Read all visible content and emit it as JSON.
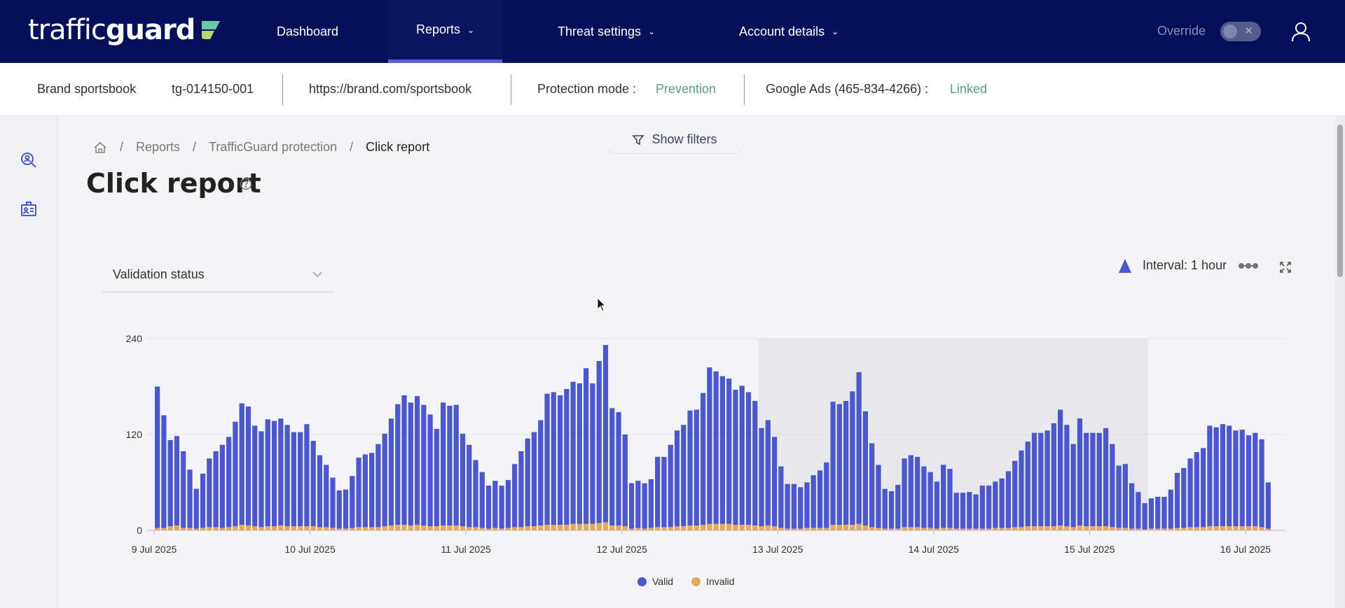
{
  "nav": {
    "logo_prefix": "traffic",
    "logo_bold": "guard",
    "items": [
      {
        "label": "Dashboard",
        "has_chevron": false
      },
      {
        "label": "Reports",
        "has_chevron": true,
        "active": true
      },
      {
        "label": "Threat settings",
        "has_chevron": true
      },
      {
        "label": "Account details",
        "has_chevron": true
      }
    ],
    "override_label": "Override",
    "override_toggle": "off"
  },
  "info": {
    "brand": "Brand sportsbook",
    "account_id": "tg-014150-001",
    "url": "https://brand.com/sportsbook",
    "protection_label": "Protection mode :",
    "protection_value": "Prevention",
    "google_ads_label": "Google Ads (465-834-4266) :",
    "google_ads_value": "Linked"
  },
  "filters": {
    "label": "Show filters"
  },
  "breadcrumb": {
    "reports": "Reports",
    "protection": "TrafficGuard protection",
    "current": "Click report",
    "separator": "/"
  },
  "page": {
    "title": "Click report"
  },
  "controls": {
    "group_by": "Validation status",
    "interval": "Interval: 1 hour"
  },
  "colors": {
    "valid": "#4c57c9",
    "invalid": "#e1a95f",
    "nav_bg": "#05105a",
    "accent": "#5aa07a"
  },
  "chart_data": {
    "type": "bar",
    "stacked": true,
    "ylim": [
      0,
      240
    ],
    "yticks": [
      0,
      120,
      240
    ],
    "xlabels": [
      "9 Jul 2025",
      "10 Jul 2025",
      "11 Jul 2025",
      "12 Jul 2025",
      "13 Jul 2025",
      "14 Jul 2025",
      "15 Jul 2025",
      "16 Jul 2025"
    ],
    "highlight_bars": [
      93,
      153
    ],
    "series": [
      {
        "name": "Valid",
        "values": [
          177,
          141,
          108,
          112,
          96,
          73,
          50,
          68,
          86,
          95,
          104,
          113,
          131,
          152,
          149,
          126,
          120,
          134,
          132,
          134,
          127,
          118,
          118,
          128,
          107,
          90,
          78,
          63,
          48,
          49,
          65,
          87,
          91,
          93,
          104,
          116,
          134,
          151,
          162,
          154,
          161,
          151,
          140,
          122,
          154,
          150,
          151,
          116,
          103,
          84,
          70,
          54,
          59,
          54,
          60,
          79,
          95,
          110,
          118,
          132,
          164,
          166,
          162,
          170,
          178,
          176,
          195,
          176,
          203,
          222,
          147,
          142,
          115,
          57,
          59,
          57,
          61,
          88,
          88,
          103,
          120,
          127,
          144,
          145,
          165,
          196,
          191,
          185,
          182,
          169,
          174,
          166,
          156,
          123,
          132,
          112,
          77,
          56,
          56,
          52,
          57,
          66,
          72,
          82,
          154,
          151,
          155,
          167,
          190,
          143,
          105,
          79,
          50,
          47,
          55,
          86,
          90,
          88,
          77,
          70,
          59,
          79,
          74,
          45,
          45,
          46,
          43,
          54,
          54,
          58,
          62,
          71,
          83,
          96,
          106,
          117,
          117,
          120,
          129,
          145,
          127,
          104,
          134,
          117,
          117,
          117,
          123,
          104,
          78,
          80,
          57,
          46,
          33,
          38,
          40,
          40,
          49,
          69,
          75,
          86,
          94,
          99,
          126,
          124,
          128,
          126,
          120,
          121,
          114,
          117,
          110,
          58
        ]
      },
      {
        "name": "Invalid",
        "values": [
          3,
          3,
          5,
          6,
          3,
          3,
          2,
          3,
          4,
          4,
          3,
          4,
          5,
          7,
          6,
          5,
          4,
          5,
          5,
          6,
          5,
          5,
          5,
          5,
          5,
          4,
          4,
          3,
          2,
          2,
          3,
          4,
          4,
          4,
          4,
          5,
          6,
          7,
          7,
          6,
          7,
          6,
          5,
          5,
          6,
          6,
          6,
          5,
          4,
          4,
          3,
          2,
          3,
          2,
          3,
          4,
          4,
          5,
          5,
          6,
          7,
          7,
          7,
          7,
          8,
          8,
          8,
          8,
          9,
          10,
          6,
          6,
          5,
          2,
          3,
          2,
          3,
          4,
          4,
          4,
          5,
          5,
          6,
          6,
          7,
          8,
          8,
          8,
          8,
          7,
          7,
          7,
          6,
          5,
          6,
          5,
          3,
          2,
          2,
          2,
          3,
          3,
          3,
          3,
          7,
          7,
          7,
          7,
          8,
          6,
          4,
          3,
          2,
          2,
          2,
          4,
          4,
          4,
          3,
          3,
          2,
          3,
          3,
          2,
          2,
          2,
          2,
          2,
          2,
          3,
          3,
          3,
          4,
          4,
          5,
          5,
          5,
          5,
          5,
          6,
          5,
          4,
          6,
          5,
          5,
          5,
          5,
          4,
          3,
          3,
          2,
          2,
          1,
          2,
          2,
          2,
          2,
          3,
          3,
          4,
          4,
          4,
          5,
          5,
          5,
          5,
          5,
          5,
          5,
          5,
          4,
          2
        ]
      }
    ]
  }
}
